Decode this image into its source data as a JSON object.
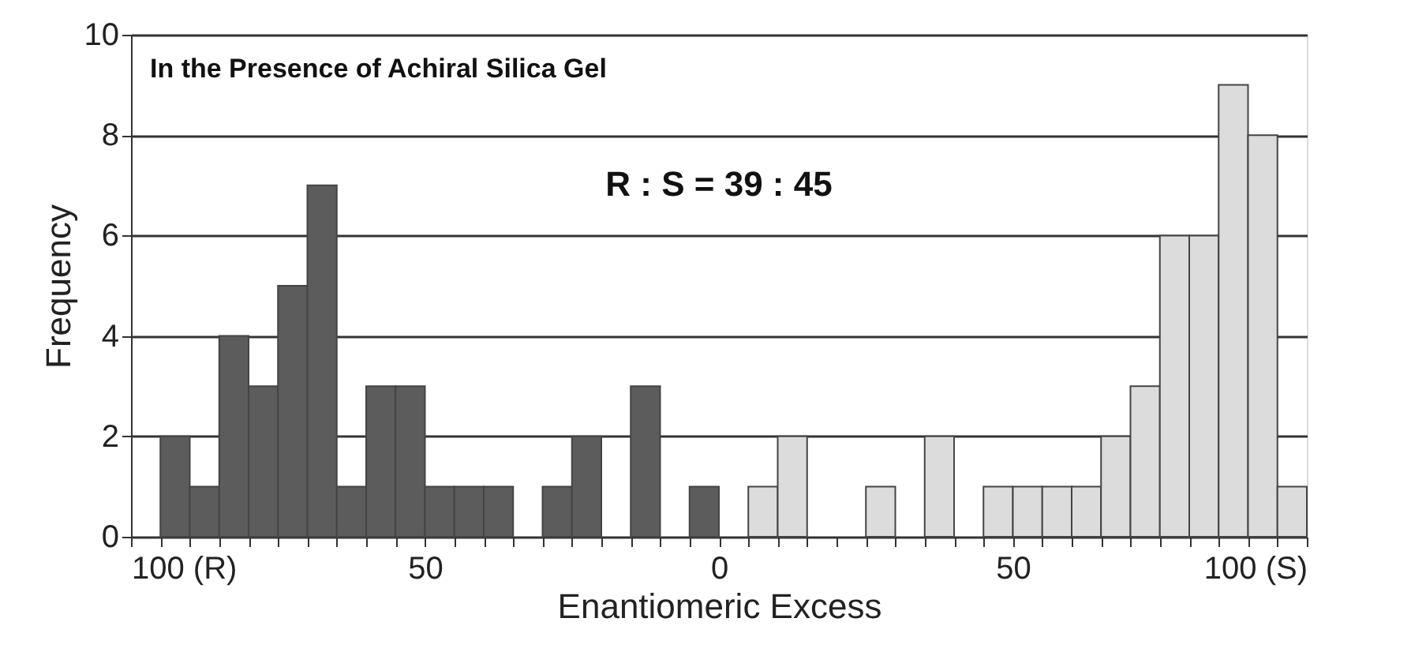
{
  "chart_data": {
    "type": "histogram",
    "xlabel": "Enantiomeric Excess",
    "ylabel": "Frequency",
    "bins": [
      -100,
      -95,
      -90,
      -85,
      -80,
      -75,
      -70,
      -65,
      -60,
      -55,
      -50,
      -45,
      -40,
      -35,
      -30,
      -25,
      -20,
      -15,
      -10,
      -5,
      0,
      5,
      10,
      15,
      20,
      25,
      30,
      35,
      40,
      45,
      50,
      55,
      60,
      65,
      70,
      75,
      80,
      85,
      90,
      95,
      100
    ],
    "values": [
      0,
      2,
      1,
      4,
      3,
      5,
      7,
      1,
      3,
      3,
      1,
      1,
      1,
      0,
      1,
      2,
      0,
      3,
      0,
      1,
      0,
      1,
      2,
      0,
      0,
      1,
      0,
      2,
      0,
      1,
      1,
      1,
      1,
      2,
      3,
      6,
      6,
      9,
      8,
      1
    ],
    "colors": [
      "#5c5c5c",
      "#5c5c5c",
      "#5c5c5c",
      "#5c5c5c",
      "#5c5c5c",
      "#5c5c5c",
      "#5c5c5c",
      "#5c5c5c",
      "#5c5c5c",
      "#5c5c5c",
      "#5c5c5c",
      "#5c5c5c",
      "#5c5c5c",
      "#5c5c5c",
      "#5c5c5c",
      "#5c5c5c",
      "#5c5c5c",
      "#5c5c5c",
      "#5c5c5c",
      "#5c5c5c",
      "#dcdcdc",
      "#dcdcdc",
      "#dcdcdc",
      "#dcdcdc",
      "#dcdcdc",
      "#dcdcdc",
      "#dcdcdc",
      "#dcdcdc",
      "#dcdcdc",
      "#dcdcdc",
      "#dcdcdc",
      "#dcdcdc",
      "#dcdcdc",
      "#dcdcdc",
      "#dcdcdc",
      "#dcdcdc",
      "#dcdcdc",
      "#dcdcdc",
      "#dcdcdc",
      "#dcdcdc"
    ],
    "xlim": [
      -100,
      100
    ],
    "xticks": [
      {
        "value": -100,
        "label": "100 (R)"
      },
      {
        "value": -95,
        "label": null
      },
      {
        "value": -90,
        "label": null
      },
      {
        "value": -85,
        "label": null
      },
      {
        "value": -80,
        "label": null
      },
      {
        "value": -75,
        "label": null
      },
      {
        "value": -70,
        "label": null
      },
      {
        "value": -65,
        "label": null
      },
      {
        "value": -60,
        "label": null
      },
      {
        "value": -55,
        "label": null
      },
      {
        "value": -50,
        "label": "50"
      },
      {
        "value": -45,
        "label": null
      },
      {
        "value": -40,
        "label": null
      },
      {
        "value": -35,
        "label": null
      },
      {
        "value": -30,
        "label": null
      },
      {
        "value": -25,
        "label": null
      },
      {
        "value": -20,
        "label": null
      },
      {
        "value": -15,
        "label": null
      },
      {
        "value": -10,
        "label": null
      },
      {
        "value": -5,
        "label": null
      },
      0,
      {
        "value": 5,
        "label": null
      },
      {
        "value": 10,
        "label": null
      },
      {
        "value": 15,
        "label": null
      },
      {
        "value": 20,
        "label": null
      },
      {
        "value": 25,
        "label": null
      },
      {
        "value": 30,
        "label": null
      },
      {
        "value": 35,
        "label": null
      },
      {
        "value": 40,
        "label": null
      },
      {
        "value": 45,
        "label": null
      },
      50,
      {
        "value": 55,
        "label": null
      },
      {
        "value": 60,
        "label": null
      },
      {
        "value": 65,
        "label": null
      },
      {
        "value": 70,
        "label": null
      },
      {
        "value": 75,
        "label": null
      },
      {
        "value": 80,
        "label": null
      },
      {
        "value": 85,
        "label": null
      },
      {
        "value": 90,
        "label": null
      },
      {
        "value": 95,
        "label": null
      },
      {
        "value": 100,
        "label": "100 (S)"
      }
    ],
    "ylim": [
      0,
      10
    ],
    "yticks": [
      0,
      2,
      4,
      6,
      8,
      10
    ],
    "grid": "y",
    "legend": false,
    "annotations": [
      "In the Presence of Achiral Silica Gel",
      "R : S = 39 : 45"
    ]
  }
}
